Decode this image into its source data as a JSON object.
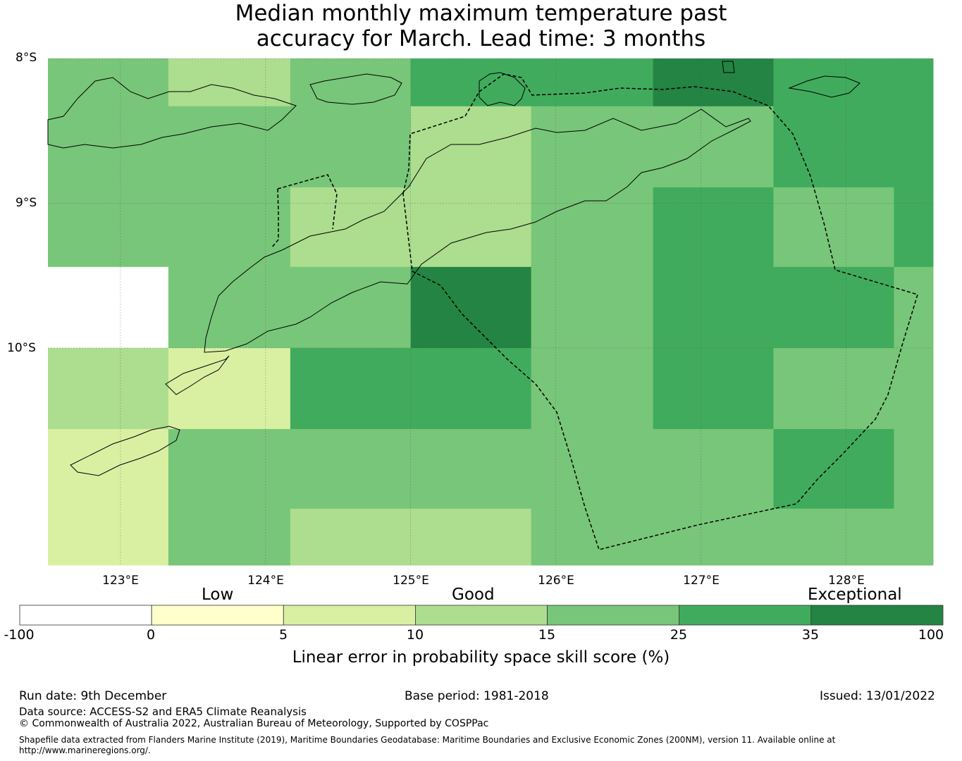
{
  "title": {
    "line1": "Median monthly maximum temperature past",
    "line2": "accuracy for March. Lead time: 3 months"
  },
  "map": {
    "lat_labels": [
      "8°S",
      "9°S",
      "10°S"
    ],
    "lon_labels": [
      "123°E",
      "124°E",
      "125°E",
      "126°E",
      "127°E",
      "128°E"
    ],
    "lon_range": [
      122.5,
      128.6
    ],
    "lat_range": [
      -8.0,
      -11.5
    ],
    "cell_lon_edges": [
      122.5,
      123.33,
      124.17,
      125.0,
      125.83,
      126.67,
      127.5,
      128.33,
      128.6
    ],
    "cell_lat_edges": [
      -8.0,
      -8.33,
      -8.89,
      -9.44,
      -10.0,
      -10.56,
      -11.11,
      -11.5
    ],
    "skill_class_rows": [
      [
        4,
        3,
        4,
        5,
        5,
        6,
        5,
        5
      ],
      [
        4,
        4,
        4,
        3,
        4,
        4,
        5,
        5
      ],
      [
        4,
        4,
        3,
        3,
        4,
        5,
        4,
        5
      ],
      [
        0,
        4,
        4,
        6,
        4,
        5,
        5,
        4
      ],
      [
        3,
        2,
        5,
        5,
        4,
        5,
        4,
        4
      ],
      [
        2,
        4,
        4,
        4,
        4,
        4,
        5,
        4
      ],
      [
        2,
        4,
        3,
        3,
        4,
        4,
        4,
        4
      ]
    ]
  },
  "colorbar": {
    "category_labels": [
      "Low",
      "Good",
      "Exceptional"
    ],
    "ticks": [
      "-100",
      "0",
      "5",
      "10",
      "15",
      "25",
      "35",
      "100"
    ],
    "colors": [
      "#ffffff",
      "#ffffcc",
      "#d9f0a3",
      "#addd8e",
      "#78c679",
      "#41ab5d",
      "#238443"
    ],
    "label": "Linear error in probability space skill score (%)"
  },
  "footer": {
    "run_date": "Run date: 9th December",
    "base_period": "Base period: 1981-2018",
    "issued": "Issued: 13/01/2022",
    "data_source": "Data source: ACCESS-S2 and ERA5 Climate Reanalysis",
    "copyright": "© Commonwealth of Australia 2022, Australian Bureau of Meteorology, Supported by COSPPac",
    "shapefile_line1": "Shapefile data extracted from Flanders Marine Institute (2019), Maritime Boundaries Geodatabase: Maritime Boundaries and Exclusive Economic Zones (200NM), version 11. Available online at",
    "shapefile_line2": "http://www.marineregions.org/."
  }
}
